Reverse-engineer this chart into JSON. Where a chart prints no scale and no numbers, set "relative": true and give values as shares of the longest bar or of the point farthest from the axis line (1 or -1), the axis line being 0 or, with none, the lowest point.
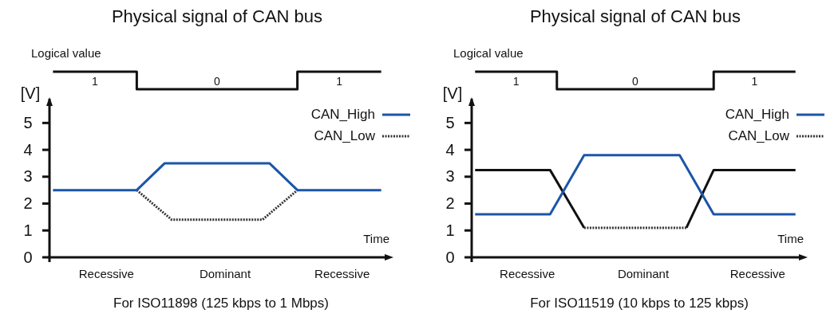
{
  "chart_data": [
    {
      "type": "step",
      "title": "Physical signal of CAN bus",
      "ylabel": "Logical value",
      "relative": true,
      "tick_labels": false,
      "marker": "none",
      "categories": [
        null,
        null,
        null,
        null,
        null,
        null,
        null,
        null,
        null,
        null,
        null,
        null,
        null,
        null,
        null,
        null,
        null,
        null,
        null,
        null,
        null,
        null,
        null,
        null,
        null,
        null,
        null,
        null,
        null,
        null,
        null,
        null,
        null,
        null,
        null,
        null,
        null,
        null,
        null,
        null,
        null,
        null,
        null,
        null,
        null,
        null,
        null,
        null
      ],
      "series": [
        {
          "color": "#111111",
          "values": [
            1,
            null,
            null,
            null,
            null,
            null,
            null,
            null,
            null,
            null,
            null,
            null,
            0,
            null,
            null,
            null,
            null,
            null,
            null,
            null,
            null,
            null,
            null,
            null,
            null,
            null,
            null,
            null,
            null,
            null,
            null,
            null,
            null,
            null,
            null,
            1,
            null,
            null,
            null,
            null,
            null,
            null,
            null,
            null,
            null,
            null,
            null,
            1
          ]
        }
      ],
      "annotations": [
        "1",
        "0",
        "1"
      ]
    },
    {
      "type": "line",
      "ylabel": "[V]",
      "xlabel": "Time",
      "ylim": [
        0,
        5.9
      ],
      "yticks": [
        0,
        1,
        2,
        3,
        4,
        5
      ],
      "tick_labels": "y",
      "marker": "none",
      "legend": "top right",
      "categories": [
        null,
        null,
        null,
        null,
        null,
        null,
        null,
        null,
        null,
        null,
        null,
        null,
        null,
        null,
        null,
        null,
        null,
        null,
        null,
        null,
        null,
        null,
        null,
        null,
        null,
        null,
        null,
        null,
        null,
        null,
        null,
        null,
        null,
        null,
        null,
        null,
        null,
        null,
        null,
        null,
        null,
        null,
        null,
        null,
        null,
        null,
        null,
        null
      ],
      "series": [
        {
          "name": "CAN_High",
          "color": "#1a56a8",
          "line_style": "solid",
          "values": [
            2.5,
            null,
            null,
            null,
            null,
            null,
            null,
            null,
            null,
            null,
            null,
            null,
            2.5,
            null,
            null,
            null,
            3.5,
            null,
            null,
            null,
            null,
            null,
            null,
            null,
            null,
            null,
            null,
            null,
            null,
            null,
            null,
            3.5,
            null,
            null,
            null,
            2.5,
            null,
            null,
            null,
            null,
            null,
            null,
            null,
            null,
            null,
            null,
            null,
            2.5
          ]
        },
        {
          "name": "CAN_Low",
          "color": "#333333",
          "line_style": "dotted",
          "values": [
            null,
            null,
            null,
            null,
            null,
            null,
            null,
            null,
            null,
            null,
            null,
            null,
            2.5,
            null,
            null,
            null,
            null,
            1.4,
            null,
            null,
            null,
            null,
            null,
            null,
            null,
            null,
            null,
            null,
            null,
            null,
            1.4,
            null,
            null,
            null,
            null,
            2.5,
            null,
            null,
            null,
            null,
            null,
            null,
            null,
            null,
            null,
            null,
            null,
            null
          ]
        }
      ],
      "annotations": [
        "Recessive",
        "Dominant",
        "Recessive",
        "For ISO11898 (125 kbps to 1 Mbps)"
      ]
    },
    {
      "type": "step",
      "title": "Physical signal of CAN bus",
      "ylabel": "Logical value",
      "relative": true,
      "tick_labels": false,
      "marker": "none",
      "categories": [
        null,
        null,
        null,
        null,
        null,
        null,
        null,
        null,
        null,
        null,
        null,
        null,
        null,
        null,
        null,
        null,
        null,
        null,
        null,
        null,
        null,
        null,
        null,
        null,
        null,
        null,
        null,
        null,
        null,
        null,
        null,
        null,
        null,
        null,
        null,
        null,
        null,
        null,
        null,
        null,
        null,
        null,
        null,
        null,
        null,
        null,
        null,
        null
      ],
      "series": [
        {
          "color": "#111111",
          "values": [
            1,
            null,
            null,
            null,
            null,
            null,
            null,
            null,
            null,
            null,
            null,
            null,
            0,
            null,
            null,
            null,
            null,
            null,
            null,
            null,
            null,
            null,
            null,
            null,
            null,
            null,
            null,
            null,
            null,
            null,
            null,
            null,
            null,
            null,
            null,
            1,
            null,
            null,
            null,
            null,
            null,
            null,
            null,
            null,
            null,
            null,
            null,
            1
          ]
        }
      ],
      "annotations": [
        "1",
        "0",
        "1"
      ]
    },
    {
      "type": "line",
      "ylabel": "[V]",
      "xlabel": "Time",
      "ylim": [
        0,
        5.9
      ],
      "yticks": [
        0,
        1,
        2,
        3,
        4,
        5
      ],
      "tick_labels": "y",
      "marker": "none",
      "legend": "top right",
      "categories": [
        null,
        null,
        null,
        null,
        null,
        null,
        null,
        null,
        null,
        null,
        null,
        null,
        null,
        null,
        null,
        null,
        null,
        null,
        null,
        null,
        null,
        null,
        null,
        null,
        null,
        null,
        null,
        null,
        null,
        null,
        null,
        null,
        null,
        null,
        null,
        null,
        null,
        null,
        null,
        null,
        null,
        null,
        null,
        null,
        null,
        null,
        null,
        null
      ],
      "series": [
        {
          "name": "CAN_High",
          "color": "#1a56a8",
          "line_style": "solid",
          "values": [
            1.6,
            null,
            null,
            null,
            null,
            null,
            null,
            null,
            null,
            null,
            null,
            1.6,
            null,
            null,
            null,
            null,
            3.8,
            null,
            null,
            null,
            null,
            null,
            null,
            null,
            null,
            null,
            null,
            null,
            null,
            null,
            3.8,
            null,
            null,
            null,
            null,
            1.6,
            null,
            null,
            null,
            null,
            null,
            null,
            null,
            null,
            null,
            null,
            null,
            1.6
          ]
        },
        {
          "name": "CAN_Low",
          "color": "#333333",
          "line_style": "dotted",
          "values": [
            null,
            null,
            null,
            null,
            null,
            null,
            null,
            null,
            null,
            null,
            null,
            null,
            null,
            null,
            null,
            null,
            1.1,
            null,
            null,
            null,
            null,
            null,
            null,
            null,
            null,
            null,
            null,
            null,
            null,
            null,
            null,
            1.1,
            null,
            null,
            null,
            null,
            null,
            null,
            null,
            null,
            null,
            null,
            null,
            null,
            null,
            null,
            null,
            null
          ]
        },
        {
          "color": "#111111",
          "line_style": "solid",
          "values": [
            3.25,
            null,
            null,
            null,
            null,
            null,
            null,
            null,
            null,
            null,
            null,
            3.25,
            null,
            null,
            null,
            null,
            1.1,
            null,
            null,
            null,
            null,
            null,
            null,
            null,
            null,
            null,
            null,
            null,
            null,
            null,
            null,
            null,
            null,
            null,
            null,
            null,
            null,
            null,
            null,
            null,
            null,
            null,
            null,
            null,
            null,
            null,
            null,
            null
          ]
        },
        {
          "color": "#111111",
          "line_style": "solid",
          "values": [
            null,
            null,
            null,
            null,
            null,
            null,
            null,
            null,
            null,
            null,
            null,
            null,
            null,
            null,
            null,
            null,
            null,
            null,
            null,
            null,
            null,
            null,
            null,
            null,
            null,
            null,
            null,
            null,
            null,
            null,
            null,
            1.1,
            null,
            null,
            null,
            3.25,
            null,
            null,
            null,
            null,
            null,
            null,
            null,
            null,
            null,
            null,
            null,
            3.25
          ]
        }
      ],
      "annotations": [
        "Recessive",
        "Dominant",
        "Recessive",
        "For ISO11519 (10 kbps to 125 kbps)"
      ]
    }
  ]
}
